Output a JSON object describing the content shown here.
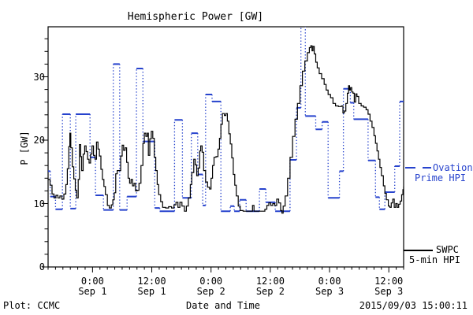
{
  "title": "Hemispheric Power [GW]",
  "footer": {
    "plot_credit": "Plot: CCMC",
    "xaxis_title": "Date and Time",
    "timestamp": "2015/09/03 15:00:11"
  },
  "legend": {
    "ovation": {
      "line1": "Ovation",
      "line2": "Prime HPI",
      "color": "#2743cd"
    },
    "swpc": {
      "line1": "SWPC",
      "line2": "5-min HPI",
      "color": "#000000"
    }
  },
  "colors": {
    "ovation_blue": "#2743cd",
    "swpc_black": "#000000",
    "frame": "#000000",
    "background": "#ffffff"
  },
  "chart_data": {
    "type": "line",
    "title": "Hemispheric Power [GW]",
    "xlabel": "Date and Time",
    "ylabel": "P [GW]",
    "x_unit": "hours since 2015-08-31 15:00 UT",
    "xlim": [
      0,
      72
    ],
    "ylim": [
      0,
      37.9
    ],
    "grid": false,
    "legend_position": "right-outside",
    "x_major_ticks": [
      {
        "t": 9,
        "time": "0:00",
        "date": "Sep 1"
      },
      {
        "t": 21,
        "time": "12:00",
        "date": "Sep 1"
      },
      {
        "t": 33,
        "time": "0:00",
        "date": "Sep 2"
      },
      {
        "t": 45,
        "time": "12:00",
        "date": "Sep 2"
      },
      {
        "t": 57,
        "time": "0:00",
        "date": "Sep 3"
      },
      {
        "t": 69,
        "time": "12:00",
        "date": "Sep 3"
      }
    ],
    "x_minor_step_hours": 1.5,
    "y_major_ticks": [
      0,
      10,
      20,
      30
    ],
    "y_minor_step": 2,
    "series": [
      {
        "name": "Ovation Prime HPI",
        "color": "#2743cd",
        "style": "steps-with-dotted-jumps",
        "steps": [
          [
            0,
            0.45,
            15.1
          ],
          [
            0.45,
            1.5,
            11.1
          ],
          [
            1.5,
            2.9,
            9.1
          ],
          [
            2.9,
            4.5,
            24.1
          ],
          [
            4.5,
            5.6,
            9.2
          ],
          [
            5.6,
            8.5,
            24.1
          ],
          [
            8.5,
            9.6,
            17.3
          ],
          [
            9.6,
            11.2,
            11.3
          ],
          [
            11.2,
            13.2,
            9.0
          ],
          [
            13.2,
            14.5,
            32.0
          ],
          [
            14.5,
            16.0,
            9.0
          ],
          [
            16.0,
            17.9,
            11.1
          ],
          [
            17.9,
            19.2,
            31.3
          ],
          [
            19.2,
            21.6,
            19.8
          ],
          [
            21.6,
            22.6,
            9.3
          ],
          [
            22.6,
            25.6,
            8.8
          ],
          [
            25.6,
            27.2,
            23.2
          ],
          [
            27.2,
            29.0,
            10.9
          ],
          [
            29.0,
            30.3,
            21.1
          ],
          [
            30.3,
            31.3,
            14.6
          ],
          [
            31.3,
            31.9,
            9.7
          ],
          [
            31.9,
            33.2,
            27.2
          ],
          [
            33.2,
            35.0,
            26.1
          ],
          [
            35.0,
            36.9,
            8.8
          ],
          [
            36.9,
            37.7,
            9.6
          ],
          [
            37.7,
            38.8,
            8.8
          ],
          [
            38.8,
            40.1,
            10.6
          ],
          [
            40.1,
            42.8,
            8.8
          ],
          [
            42.8,
            44.1,
            12.3
          ],
          [
            44.1,
            46.0,
            10.2
          ],
          [
            46.0,
            49.0,
            8.8
          ],
          [
            49.0,
            50.3,
            16.9
          ],
          [
            50.3,
            51.2,
            25.1
          ],
          [
            51.2,
            52.1,
            39.0
          ],
          [
            52.1,
            54.2,
            23.8
          ],
          [
            54.2,
            55.5,
            21.7
          ],
          [
            55.5,
            56.7,
            22.9
          ],
          [
            56.7,
            59.0,
            10.9
          ],
          [
            59.0,
            59.8,
            15.1
          ],
          [
            59.8,
            61.2,
            28.1
          ],
          [
            61.2,
            61.9,
            25.9
          ],
          [
            61.9,
            64.8,
            23.3
          ],
          [
            64.8,
            66.3,
            16.8
          ],
          [
            66.3,
            67.1,
            11.0
          ],
          [
            67.1,
            68.2,
            9.1
          ],
          [
            68.2,
            70.2,
            11.8
          ],
          [
            70.2,
            71.2,
            15.9
          ],
          [
            71.2,
            72.0,
            26.1
          ]
        ]
      },
      {
        "name": "SWPC 5-min HPI",
        "color": "#000000",
        "style": "step-line",
        "points": [
          [
            0,
            13.8
          ],
          [
            0.4,
            12.9
          ],
          [
            0.8,
            11.5
          ],
          [
            1.2,
            10.9
          ],
          [
            1.6,
            11.3
          ],
          [
            2,
            10.9
          ],
          [
            2.4,
            11.2
          ],
          [
            2.8,
            10.7
          ],
          [
            3.2,
            11.5
          ],
          [
            3.6,
            13
          ],
          [
            3.9,
            15.5
          ],
          [
            4.2,
            19
          ],
          [
            4.4,
            21.1
          ],
          [
            4.6,
            18.8
          ],
          [
            4.9,
            15.8
          ],
          [
            5.2,
            13.9
          ],
          [
            5.5,
            12.1
          ],
          [
            5.8,
            10.9
          ],
          [
            6.1,
            13.8
          ],
          [
            6.35,
            19.3
          ],
          [
            6.6,
            17.4
          ],
          [
            6.8,
            15.2
          ],
          [
            7.1,
            17.8
          ],
          [
            7.4,
            19.1
          ],
          [
            7.7,
            18.2
          ],
          [
            8,
            17
          ],
          [
            8.3,
            16.4
          ],
          [
            8.6,
            17.8
          ],
          [
            8.9,
            19.1
          ],
          [
            9.2,
            17.6
          ],
          [
            9.5,
            17
          ],
          [
            9.8,
            19.7
          ],
          [
            10.1,
            18.6
          ],
          [
            10.4,
            17.5
          ],
          [
            10.7,
            15.4
          ],
          [
            11,
            13.8
          ],
          [
            11.3,
            12.7
          ],
          [
            11.6,
            11.4
          ],
          [
            12,
            9.7
          ],
          [
            12.4,
            9.3
          ],
          [
            12.8,
            9.8
          ],
          [
            13.1,
            10.6
          ],
          [
            13.4,
            11.7
          ],
          [
            13.7,
            14.7
          ],
          [
            14,
            15.2
          ],
          [
            14.4,
            15.2
          ],
          [
            14.7,
            17.5
          ],
          [
            15,
            19.2
          ],
          [
            15.3,
            18.4
          ],
          [
            15.6,
            18.8
          ],
          [
            15.9,
            16.5
          ],
          [
            16.2,
            14
          ],
          [
            16.5,
            13.2
          ],
          [
            16.8,
            13.8
          ],
          [
            17.1,
            12.8
          ],
          [
            17.4,
            13.2
          ],
          [
            17.7,
            12
          ],
          [
            18,
            12.1
          ],
          [
            18.4,
            13.2
          ],
          [
            18.8,
            16
          ],
          [
            19.2,
            19.5
          ],
          [
            19.5,
            21.1
          ],
          [
            19.8,
            20.6
          ],
          [
            20.1,
            21.1
          ],
          [
            20.3,
            17.6
          ],
          [
            20.6,
            20.2
          ],
          [
            20.9,
            21.4
          ],
          [
            21.2,
            20.3
          ],
          [
            21.5,
            17.3
          ],
          [
            21.8,
            15.2
          ],
          [
            22.1,
            13
          ],
          [
            22.4,
            11.4
          ],
          [
            22.8,
            10.3
          ],
          [
            23.2,
            9.4
          ],
          [
            23.8,
            9.3
          ],
          [
            24.4,
            9.5
          ],
          [
            25,
            9.3
          ],
          [
            25.5,
            9.8
          ],
          [
            25.9,
            10.2
          ],
          [
            26.3,
            9.4
          ],
          [
            26.7,
            10.2
          ],
          [
            27.1,
            9.6
          ],
          [
            27.6,
            8.8
          ],
          [
            28,
            9.6
          ],
          [
            28.4,
            10.9
          ],
          [
            28.8,
            13
          ],
          [
            29.1,
            14.9
          ],
          [
            29.5,
            17
          ],
          [
            29.8,
            16.1
          ],
          [
            30.1,
            14.4
          ],
          [
            30.4,
            15.6
          ],
          [
            30.7,
            18.3
          ],
          [
            30.9,
            19.1
          ],
          [
            31.2,
            18.1
          ],
          [
            31.5,
            15.2
          ],
          [
            31.9,
            13.4
          ],
          [
            32.3,
            12.6
          ],
          [
            32.7,
            12.3
          ],
          [
            33,
            14
          ],
          [
            33.3,
            16
          ],
          [
            33.6,
            17.3
          ],
          [
            34,
            17.4
          ],
          [
            34.4,
            18.6
          ],
          [
            34.7,
            20.3
          ],
          [
            35,
            22.5
          ],
          [
            35.3,
            24.2
          ],
          [
            35.7,
            23.9
          ],
          [
            36,
            24.2
          ],
          [
            36.3,
            23
          ],
          [
            36.6,
            21
          ],
          [
            36.9,
            19.4
          ],
          [
            37.2,
            17.2
          ],
          [
            37.5,
            14.6
          ],
          [
            37.8,
            12.9
          ],
          [
            38.1,
            11.2
          ],
          [
            38.5,
            9.6
          ],
          [
            38.9,
            8.9
          ],
          [
            39.5,
            8.8
          ],
          [
            40.2,
            8.8
          ],
          [
            40.9,
            8.8
          ],
          [
            41.4,
            9.7
          ],
          [
            41.7,
            8.8
          ],
          [
            42.4,
            8.8
          ],
          [
            43.2,
            8.8
          ],
          [
            43.9,
            9.1
          ],
          [
            44.3,
            9.7
          ],
          [
            44.7,
            10.1
          ],
          [
            45.1,
            9.7
          ],
          [
            45.5,
            10
          ],
          [
            45.9,
            9.7
          ],
          [
            46.3,
            10.7
          ],
          [
            46.7,
            10.1
          ],
          [
            47.1,
            8.9
          ],
          [
            47.35,
            8.5
          ],
          [
            47.6,
            9.6
          ],
          [
            48,
            11.2
          ],
          [
            48.5,
            14
          ],
          [
            49,
            17.3
          ],
          [
            49.5,
            20.6
          ],
          [
            50,
            23.3
          ],
          [
            50.5,
            25.8
          ],
          [
            51,
            28.6
          ],
          [
            51.5,
            30.9
          ],
          [
            52,
            32.5
          ],
          [
            52.5,
            33.8
          ],
          [
            52.9,
            34.6
          ],
          [
            53.2,
            34.9
          ],
          [
            53.45,
            34.1
          ],
          [
            53.65,
            34.8
          ],
          [
            53.9,
            33.6
          ],
          [
            54.2,
            32.3
          ],
          [
            54.5,
            31.4
          ],
          [
            54.9,
            30.5
          ],
          [
            55.4,
            29.7
          ],
          [
            55.9,
            28.8
          ],
          [
            56.3,
            27.9
          ],
          [
            56.7,
            27.2
          ],
          [
            57.2,
            26.7
          ],
          [
            57.7,
            25.8
          ],
          [
            58.2,
            25.4
          ],
          [
            58.8,
            25.3
          ],
          [
            59.4,
            25.4
          ],
          [
            59.7,
            24.3
          ],
          [
            60,
            24.6
          ],
          [
            60.3,
            25.8
          ],
          [
            60.6,
            27.4
          ],
          [
            60.85,
            28.6
          ],
          [
            61.05,
            27.9
          ],
          [
            61.25,
            28.3
          ],
          [
            61.5,
            27.6
          ],
          [
            61.75,
            27.4
          ],
          [
            62,
            26
          ],
          [
            62.3,
            27.3
          ],
          [
            62.55,
            26.9
          ],
          [
            62.9,
            25.8
          ],
          [
            63.4,
            25.4
          ],
          [
            63.9,
            25.2
          ],
          [
            64.4,
            24.8
          ],
          [
            64.8,
            24.1
          ],
          [
            65.2,
            23
          ],
          [
            65.6,
            22
          ],
          [
            66,
            20.7
          ],
          [
            66.3,
            19.5
          ],
          [
            66.6,
            18.3
          ],
          [
            66.9,
            17
          ],
          [
            67.2,
            15.7
          ],
          [
            67.5,
            14.4
          ],
          [
            67.9,
            12.8
          ],
          [
            68.2,
            11.6
          ],
          [
            68.5,
            10.6
          ],
          [
            68.9,
            9.6
          ],
          [
            69.2,
            9.4
          ],
          [
            69.5,
            10.1
          ],
          [
            69.8,
            10.7
          ],
          [
            70.1,
            9.4
          ],
          [
            70.4,
            10
          ],
          [
            70.7,
            9.4
          ],
          [
            71,
            9.9
          ],
          [
            71.3,
            10.4
          ],
          [
            71.6,
            11.4
          ],
          [
            71.85,
            12.2
          ],
          [
            72,
            12.7
          ]
        ]
      }
    ]
  }
}
